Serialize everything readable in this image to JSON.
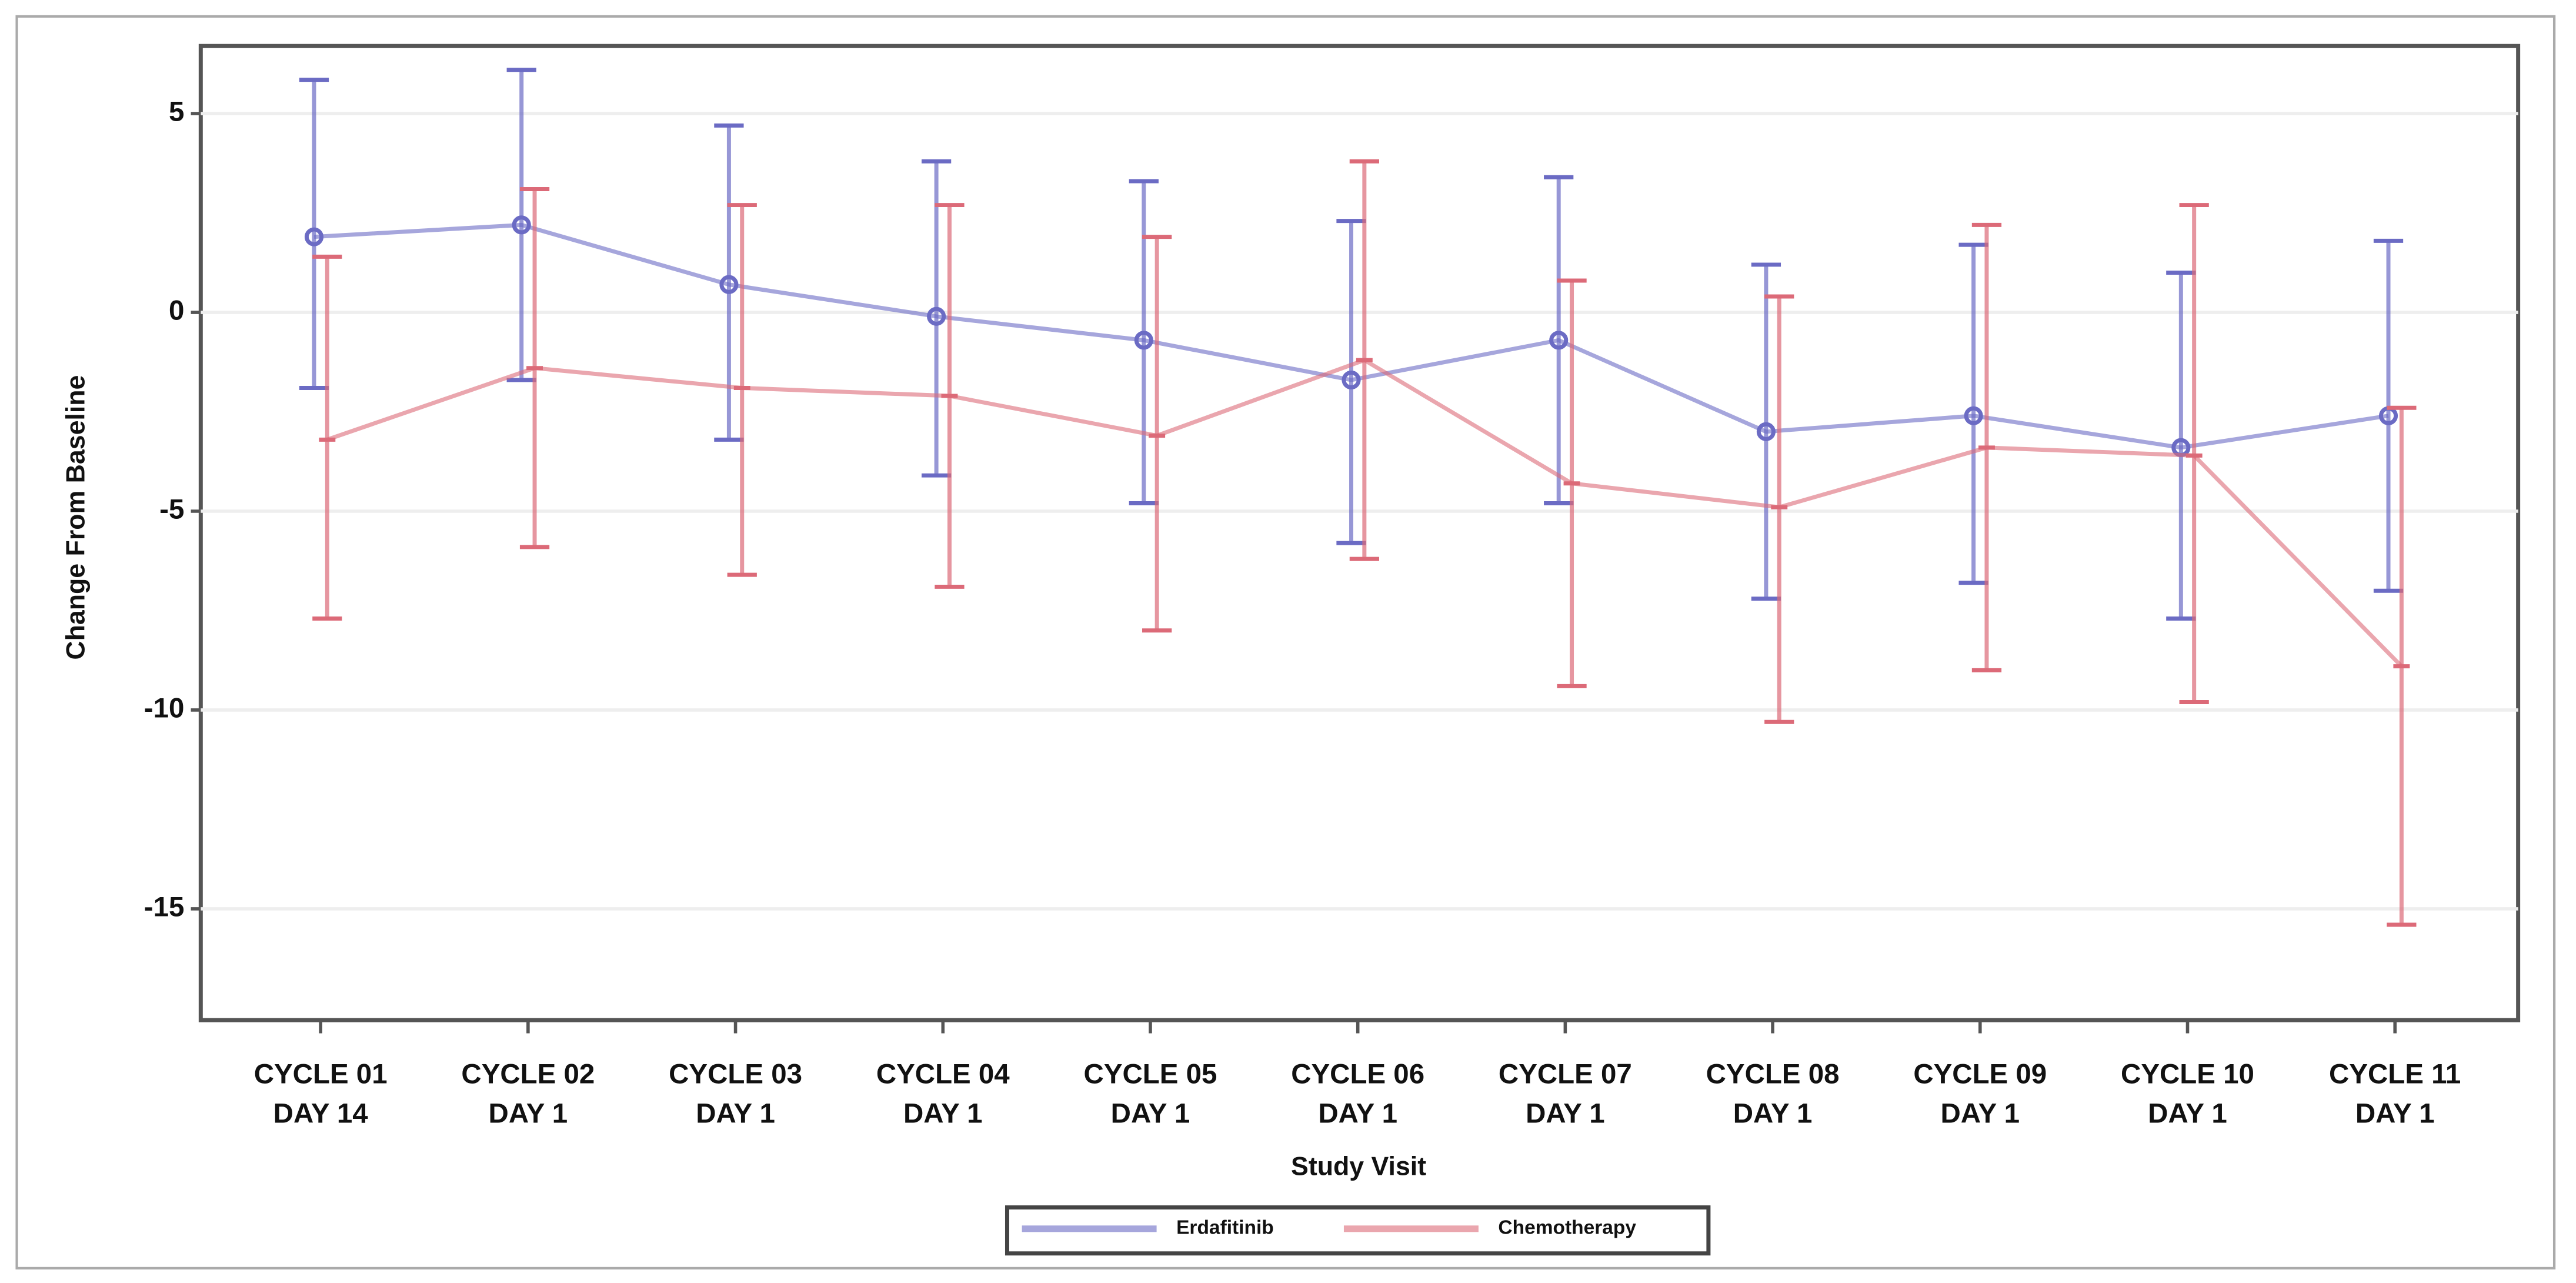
{
  "chart_data": {
    "type": "line",
    "xlabel": "Study Visit",
    "ylabel": "Change From Baseline",
    "categories": [
      [
        "CYCLE 01",
        "DAY 14"
      ],
      [
        "CYCLE 02",
        "DAY 1"
      ],
      [
        "CYCLE 03",
        "DAY 1"
      ],
      [
        "CYCLE 04",
        "DAY 1"
      ],
      [
        "CYCLE 05",
        "DAY 1"
      ],
      [
        "CYCLE 06",
        "DAY 1"
      ],
      [
        "CYCLE 07",
        "DAY 1"
      ],
      [
        "CYCLE 08",
        "DAY 1"
      ],
      [
        "CYCLE 09",
        "DAY 1"
      ],
      [
        "CYCLE 10",
        "DAY 1"
      ],
      [
        "CYCLE 11",
        "DAY 1"
      ]
    ],
    "series": [
      {
        "name": "Erdafitinib",
        "color": "#6b6bc4",
        "values": [
          1.9,
          2.2,
          0.7,
          -0.1,
          -0.7,
          -1.7,
          -0.7,
          -3.0,
          -2.6,
          -3.4,
          -2.6
        ],
        "lower": [
          -1.9,
          -1.7,
          -3.2,
          -4.1,
          -4.8,
          -5.8,
          -4.8,
          -7.2,
          -6.8,
          -7.7,
          -7.0
        ],
        "upper": [
          5.85,
          6.1,
          4.7,
          3.8,
          3.3,
          2.3,
          3.4,
          1.2,
          1.7,
          1.0,
          1.8
        ]
      },
      {
        "name": "Chemotherapy",
        "color": "#dc6a78",
        "values": [
          -3.2,
          -1.4,
          -1.9,
          -2.1,
          -3.1,
          -1.2,
          -4.3,
          -4.9,
          -3.4,
          -3.6,
          -8.9
        ],
        "lower": [
          -7.7,
          -5.9,
          -6.6,
          -6.9,
          -8.0,
          -6.2,
          -9.4,
          -10.3,
          -9.0,
          -9.8,
          -15.4
        ],
        "upper": [
          1.4,
          3.1,
          2.7,
          2.7,
          1.9,
          3.8,
          0.8,
          0.4,
          2.2,
          2.7,
          -2.4
        ]
      }
    ],
    "ylim": [
      -17.8,
      6.7
    ],
    "yticks": [
      -15,
      -10,
      -5,
      0,
      5
    ],
    "grid": true,
    "legend": "bottom"
  }
}
